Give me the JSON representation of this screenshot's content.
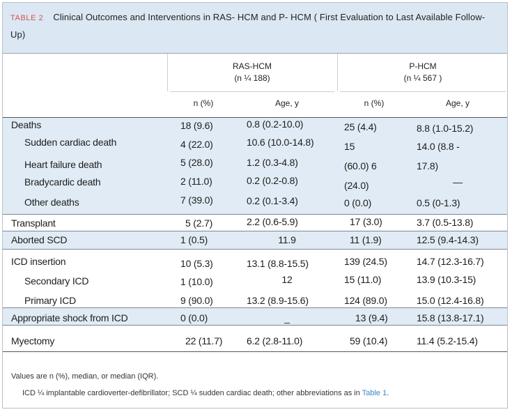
{
  "table": {
    "label": "TABLE 2",
    "title": "Clinical Outcomes and Interventions in RAS-  HCM and P-  HCM ( First Evaluation to Last Available Follow- Up)",
    "groups": [
      {
        "name": "RAS-HCM",
        "n": "(n ¼ 188)"
      },
      {
        "name": "P-HCM",
        "n": "(n ¼ 567 )"
      }
    ],
    "columns": [
      "n (%)",
      "Age, y",
      "n (%)",
      "Age, y"
    ],
    "rows": [
      {
        "label": "Deaths",
        "indent": false,
        "c1": "18 (9.6)",
        "c2": "0.8 (0.2-10.0)",
        "c3": "25 (4.4)",
        "c4": "8.8 (1.0-15.2)"
      },
      {
        "label": "Sudden cardiac death",
        "indent": true,
        "c1": "4 (22.0)",
        "c2": "10.6 (10.0-14.8)",
        "c3": "15",
        "c4": "14.0 (8.8 -"
      },
      {
        "label": "Heart failure death",
        "indent": true,
        "c1": "5 (28.0)",
        "c2": "1.2 (0.3-4.8)",
        "c3": "(60.0) 6",
        "c4": "17.8)"
      },
      {
        "label": "Bradycardic death",
        "indent": true,
        "c1": "2 (11.0)",
        "c2": "0.2 (0.2-0.8)",
        "c3": "(24.0)",
        "c4": "—"
      },
      {
        "label": "Other deaths",
        "indent": true,
        "c1": "7 (39.0)",
        "c2": "0.2 (0.1-3.4)",
        "c3": "0 (0.0)",
        "c4": "0.5 (0-1.3)"
      },
      {
        "label": "Transplant",
        "indent": false,
        "c1": "5 (2.7)",
        "c2": "2.2 (0.6-5.9)",
        "c3": "17 (3.0)",
        "c4": "3.7 (0.5-13.8)"
      },
      {
        "label": "Aborted SCD",
        "indent": false,
        "c1": "1 (0.5)",
        "c2": "11.9",
        "c3": "11 (1.9)",
        "c4": "12.5 (9.4-14.3)"
      },
      {
        "label": "ICD insertion",
        "indent": false,
        "c1": "10 (5.3)",
        "c2": "13.1 (8.8-15.5)",
        "c3": "139 (24.5)",
        "c4": "14.7 (12.3-16.7)"
      },
      {
        "label": "Secondary ICD",
        "indent": true,
        "c1": "1 (10.0)",
        "c2": "12",
        "c3": "15 (11.0)",
        "c4": "13.9 (10.3-15)"
      },
      {
        "label": "Primary ICD",
        "indent": true,
        "c1": "9 (90.0)",
        "c2": "13.2 (8.9-15.6)",
        "c3": "124 (89.0)",
        "c4": "15.0 (12.4-16.8)"
      },
      {
        "label": "Appropriate shock from ICD",
        "indent": false,
        "c1": "0 (0.0)",
        "c2": "_",
        "c3": "13 (9.4)",
        "c4": "15.8 (13.8-17.1)"
      },
      {
        "label": "Myectomy",
        "indent": false,
        "c1": "22 (11.7)",
        "c2": "6.2 (2.8-11.0)",
        "c3": "59 (10.4)",
        "c4": "11.4 (5.2-15.4)"
      }
    ],
    "footnotes": {
      "line1": "Values are n (%), median, or median (IQR).",
      "line2": "ICD ¼ implantable cardioverter-defibrillator; SCD ¼ sudden cardiac death; other abbreviations as in",
      "link": "Table 1",
      "end": "."
    }
  }
}
